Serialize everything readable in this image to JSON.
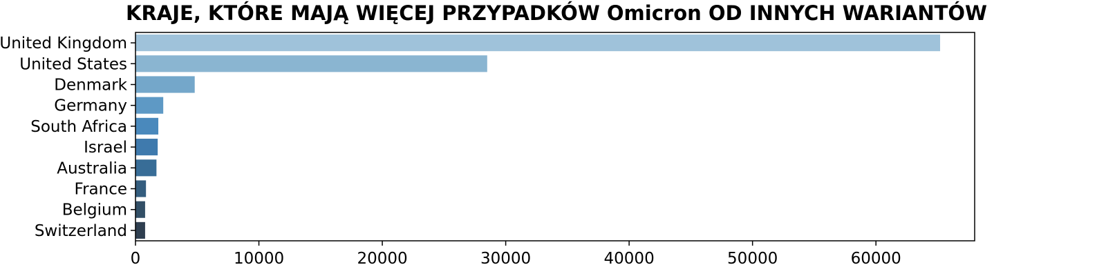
{
  "chart_data": {
    "type": "bar",
    "orientation": "horizontal",
    "title": "KRAJE, KTÓRE MAJĄ WIĘCEJ PRZYPADKÓW Omicron OD INNYCH WARIANTÓW",
    "xlabel": "",
    "ylabel": "",
    "categories": [
      "United Kingdom",
      "United States",
      "Denmark",
      "Germany",
      "South Africa",
      "Israel",
      "Australia",
      "France",
      "Belgium",
      "Switzerland"
    ],
    "values": [
      65200,
      28500,
      4800,
      2250,
      1850,
      1800,
      1700,
      850,
      780,
      780
    ],
    "xlim": [
      0,
      68000
    ],
    "xticks": [
      0,
      10000,
      20000,
      30000,
      40000,
      50000,
      60000
    ],
    "xtick_labels": [
      "0",
      "10000",
      "20000",
      "30000",
      "40000",
      "50000",
      "60000"
    ],
    "colors": [
      "#9fc2da",
      "#8ab5d1",
      "#74a7ca",
      "#5e99c5",
      "#4a89bc",
      "#3f7aad",
      "#386d97",
      "#345d7e",
      "#324f66",
      "#2f3f50"
    ],
    "grid": false,
    "legend": "none"
  }
}
